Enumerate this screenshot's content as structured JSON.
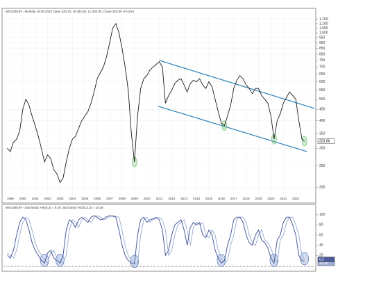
{
  "chart_data": [
    {
      "type": "line",
      "title": "WIG20EUR - Monthly 16.09.2022 Open 320.42, Hi 334.50, Lo 302.92, Close 323.06 (+0.2%)",
      "log_scale": true,
      "grid": true,
      "x": [
        1998.75,
        1999,
        1999.25,
        1999.5,
        1999.75,
        2000,
        2000.25,
        2000.5,
        2000.75,
        2001,
        2001.25,
        2001.5,
        2001.75,
        2002,
        2002.25,
        2002.5,
        2002.75,
        2003,
        2003.25,
        2003.5,
        2003.75,
        2004,
        2004.25,
        2004.5,
        2004.75,
        2005,
        2005.25,
        2005.5,
        2005.75,
        2006,
        2006.25,
        2006.5,
        2006.75,
        2007,
        2007.25,
        2007.5,
        2007.75,
        2008,
        2008.25,
        2008.5,
        2008.75,
        2009,
        2009.25,
        2009.5,
        2009.75,
        2010,
        2010.25,
        2010.5,
        2010.75,
        2011,
        2011.25,
        2011.5,
        2011.75,
        2012,
        2012.25,
        2012.5,
        2012.75,
        2013,
        2013.25,
        2013.5,
        2013.75,
        2014,
        2014.25,
        2014.5,
        2014.75,
        2015,
        2015.25,
        2015.5,
        2015.75,
        2016,
        2016.25,
        2016.5,
        2016.75,
        2017,
        2017.25,
        2017.5,
        2017.75,
        2018,
        2018.25,
        2018.5,
        2018.75,
        2019,
        2019.25,
        2019.5,
        2019.75,
        2020,
        2020.25,
        2020.5,
        2020.75,
        2021,
        2021.25,
        2021.5,
        2021.75,
        2022,
        2022.25,
        2022.5,
        2022.7
      ],
      "series": [
        {
          "name": "WIG20EUR",
          "color": "#1a1a1a",
          "values": [
            300,
            290,
            320,
            330,
            360,
            450,
            500,
            470,
            420,
            380,
            340,
            300,
            260,
            280,
            270,
            240,
            230,
            210,
            220,
            260,
            300,
            330,
            340,
            370,
            400,
            420,
            440,
            480,
            540,
            620,
            660,
            700,
            780,
            900,
            1050,
            1100,
            1000,
            850,
            700,
            550,
            350,
            260,
            420,
            560,
            620,
            640,
            680,
            700,
            720,
            740,
            700,
            480,
            520,
            550,
            590,
            610,
            620,
            580,
            540,
            590,
            610,
            600,
            620,
            580,
            560,
            600,
            570,
            500,
            440,
            390,
            380,
            420,
            470,
            560,
            610,
            640,
            620,
            580,
            560,
            530,
            560,
            560,
            520,
            500,
            480,
            420,
            330,
            400,
            430,
            480,
            510,
            540,
            520,
            500,
            400,
            330,
            323.06
          ]
        }
      ],
      "trendlines": [
        {
          "color": "#2a7fb8",
          "x": [
            2011.0,
            2023.5
          ],
          "values": [
            750,
            455
          ]
        },
        {
          "color": "#2a7fb8",
          "x": [
            2010.9,
            2022.9
          ],
          "values": [
            465,
            290
          ]
        }
      ],
      "xlim": [
        1998.5,
        2023.5
      ],
      "xticks": [
        1999,
        2000,
        2001,
        2002,
        2003,
        2004,
        2005,
        2006,
        2007,
        2008,
        2009,
        2010,
        2011,
        2012,
        2013,
        2014,
        2015,
        2016,
        2017,
        2018,
        2019,
        2020,
        2021,
        2022
      ],
      "ylim": [
        185,
        1200
      ],
      "yticks": [
        200,
        250,
        300,
        350,
        400,
        450,
        500,
        550,
        600,
        650,
        700,
        750,
        800,
        850,
        900,
        950,
        {
          "value": 1000,
          "label": "1,000"
        },
        {
          "value": 1050,
          "label": "1,050"
        },
        {
          "value": 1100,
          "label": "1,100"
        },
        {
          "value": 1150,
          "label": "1,150"
        }
      ]
    },
    {
      "type": "line",
      "title": "WIG20EUR - Stochastic %K(5,3) = 8.20, Stochastic %D(5,3,3) = 10.26",
      "x": [
        1998.75,
        1999,
        1999.25,
        1999.5,
        1999.75,
        2000,
        2000.25,
        2000.5,
        2000.75,
        2001,
        2001.25,
        2001.5,
        2001.75,
        2002,
        2002.25,
        2002.5,
        2002.75,
        2003,
        2003.25,
        2003.5,
        2003.75,
        2004,
        2004.25,
        2004.5,
        2004.75,
        2005,
        2005.25,
        2005.5,
        2005.75,
        2006,
        2006.25,
        2006.5,
        2006.75,
        2007,
        2007.25,
        2007.5,
        2007.75,
        2008,
        2008.25,
        2008.5,
        2008.75,
        2009,
        2009.25,
        2009.5,
        2009.75,
        2010,
        2010.25,
        2010.5,
        2010.75,
        2011,
        2011.25,
        2011.5,
        2011.75,
        2012,
        2012.25,
        2012.5,
        2012.75,
        2013,
        2013.25,
        2013.5,
        2013.75,
        2014,
        2014.25,
        2014.5,
        2014.75,
        2015,
        2015.25,
        2015.5,
        2015.75,
        2016,
        2016.25,
        2016.5,
        2016.75,
        2017,
        2017.25,
        2017.5,
        2017.75,
        2018,
        2018.25,
        2018.5,
        2018.75,
        2019,
        2019.25,
        2019.5,
        2019.75,
        2020,
        2020.25,
        2020.5,
        2020.75,
        2021,
        2021.25,
        2021.5,
        2021.75,
        2022,
        2022.25,
        2022.5,
        2022.7
      ],
      "series": [
        {
          "name": "%K",
          "color": "#4a5a9a",
          "values": [
            20,
            15,
            30,
            60,
            85,
            95,
            90,
            70,
            45,
            30,
            20,
            10,
            5,
            25,
            30,
            15,
            10,
            5,
            20,
            70,
            90,
            85,
            75,
            90,
            95,
            90,
            85,
            95,
            98,
            95,
            90,
            92,
            96,
            98,
            97,
            95,
            70,
            40,
            20,
            10,
            5,
            3,
            60,
            90,
            95,
            85,
            90,
            92,
            95,
            90,
            70,
            20,
            30,
            60,
            80,
            85,
            90,
            70,
            40,
            75,
            85,
            80,
            85,
            60,
            55,
            70,
            60,
            30,
            15,
            5,
            10,
            40,
            60,
            90,
            95,
            95,
            85,
            60,
            45,
            40,
            60,
            70,
            50,
            45,
            35,
            15,
            5,
            50,
            60,
            85,
            95,
            95,
            80,
            60,
            20,
            10,
            8.2
          ]
        },
        {
          "name": "%D",
          "color": "#9fb0d8",
          "values": [
            25,
            20,
            15,
            30,
            60,
            85,
            95,
            90,
            70,
            45,
            30,
            20,
            10,
            5,
            25,
            30,
            15,
            10,
            5,
            20,
            70,
            90,
            85,
            75,
            90,
            95,
            90,
            85,
            95,
            98,
            95,
            90,
            92,
            96,
            98,
            97,
            95,
            70,
            40,
            20,
            10,
            5,
            3,
            60,
            90,
            95,
            85,
            90,
            92,
            95,
            90,
            70,
            20,
            30,
            60,
            80,
            85,
            90,
            70,
            40,
            75,
            85,
            80,
            85,
            60,
            55,
            70,
            60,
            30,
            15,
            5,
            10,
            40,
            60,
            90,
            95,
            95,
            85,
            60,
            45,
            40,
            60,
            70,
            50,
            45,
            35,
            15,
            5,
            50,
            60,
            85,
            95,
            95,
            80,
            60,
            20,
            10.26
          ]
        }
      ],
      "xlim": [
        1998.5,
        2023.5
      ],
      "ylim": [
        0,
        105
      ],
      "yticks": [
        20,
        40,
        60,
        80,
        100
      ]
    }
  ]
}
